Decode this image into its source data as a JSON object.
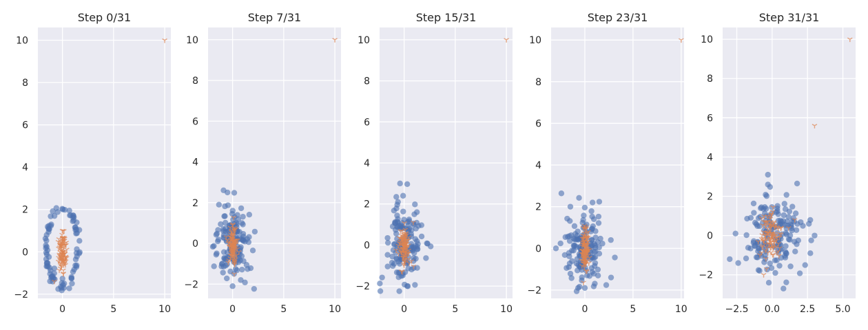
{
  "colors": {
    "axes_bg": "#eaeaf2",
    "grid": "#ffffff",
    "blue": "#4c72b0",
    "orange": "#dd8452",
    "text": "#262626"
  },
  "chart_data": [
    {
      "type": "scatter",
      "title": "Step 0/31",
      "xlim": [
        -2.4,
        10.6
      ],
      "ylim": [
        -2.2,
        10.6
      ],
      "xticks": [
        0,
        5,
        10
      ],
      "xtick_labels": [
        "0",
        "5",
        "10"
      ],
      "yticks": [
        -2,
        0,
        2,
        4,
        6,
        8,
        10
      ],
      "ytick_labels": [
        "−2",
        "0",
        "2",
        "4",
        "6",
        "8",
        "10"
      ],
      "series": [
        {
          "name": "blue points",
          "marker": "circle",
          "color": "#4c72b0",
          "shape": "ring",
          "cx": 0.0,
          "cy": 0.2,
          "rx": 1.55,
          "ry": 1.85,
          "n": 90,
          "seed": 11,
          "jitter": 0.07
        },
        {
          "name": "orange points",
          "marker": "tri_down",
          "color": "#dd8452",
          "shape": "gauss",
          "cx": 0.0,
          "cy": 0.0,
          "sx": 0.18,
          "sy": 0.42,
          "n": 100,
          "seed": 12,
          "extra": [
            [
              10,
              10
            ],
            [
              -0.8,
              -1.4
            ]
          ]
        }
      ]
    },
    {
      "type": "scatter",
      "title": "Step 7/31",
      "xlim": [
        -2.4,
        10.6
      ],
      "ylim": [
        -2.7,
        10.6
      ],
      "xticks": [
        0,
        5,
        10
      ],
      "xtick_labels": [
        "0",
        "5",
        "10"
      ],
      "yticks": [
        -2,
        0,
        2,
        4,
        6,
        8,
        10
      ],
      "ytick_labels": [
        "−2",
        "0",
        "2",
        "4",
        "6",
        "8",
        "10"
      ],
      "series": [
        {
          "name": "blue points",
          "marker": "circle",
          "color": "#4c72b0",
          "shape": "gauss",
          "cx": 0.0,
          "cy": 0.1,
          "sx": 0.85,
          "sy": 0.95,
          "n": 150,
          "seed": 21,
          "extra": [
            [
              -0.5,
              2.5
            ],
            [
              0.0,
              -2.1
            ],
            [
              0.8,
              -1.8
            ]
          ]
        },
        {
          "name": "orange points",
          "marker": "tri_down",
          "color": "#dd8452",
          "shape": "gauss",
          "cx": 0.0,
          "cy": 0.0,
          "sx": 0.2,
          "sy": 0.45,
          "n": 100,
          "seed": 22,
          "extra": [
            [
              10,
              10
            ]
          ]
        }
      ]
    },
    {
      "type": "scatter",
      "title": "Step 15/31",
      "xlim": [
        -2.4,
        10.6
      ],
      "ylim": [
        -2.6,
        10.6
      ],
      "xticks": [
        0,
        5,
        10
      ],
      "xtick_labels": [
        "0",
        "5",
        "10"
      ],
      "yticks": [
        -2,
        0,
        2,
        4,
        6,
        8,
        10
      ],
      "ytick_labels": [
        "−2",
        "0",
        "2",
        "4",
        "6",
        "8",
        "10"
      ],
      "series": [
        {
          "name": "blue points",
          "marker": "circle",
          "color": "#4c72b0",
          "shape": "gauss",
          "cx": 0.0,
          "cy": 0.0,
          "sx": 0.9,
          "sy": 0.95,
          "n": 150,
          "seed": 31,
          "extra": [
            [
              -0.4,
              3.0
            ],
            [
              -0.1,
              2.4
            ],
            [
              -0.6,
              2.1
            ],
            [
              0.3,
              -2.0
            ]
          ]
        },
        {
          "name": "orange points",
          "marker": "tri_down",
          "color": "#dd8452",
          "shape": "gauss",
          "cx": 0.0,
          "cy": 0.0,
          "sx": 0.25,
          "sy": 0.45,
          "n": 100,
          "seed": 32,
          "extra": [
            [
              10,
              10
            ],
            [
              0.9,
              1.1
            ]
          ]
        }
      ]
    },
    {
      "type": "scatter",
      "title": "Step 23/31",
      "xlim": [
        -3.5,
        10.3
      ],
      "ylim": [
        -2.4,
        10.6
      ],
      "xticks": [
        0,
        5,
        10
      ],
      "xtick_labels": [
        "0",
        "5",
        "10"
      ],
      "yticks": [
        -2,
        0,
        2,
        4,
        6,
        8,
        10
      ],
      "ytick_labels": [
        "−2",
        "0",
        "2",
        "4",
        "6",
        "8",
        "10"
      ],
      "series": [
        {
          "name": "blue points",
          "marker": "circle",
          "color": "#4c72b0",
          "shape": "gauss",
          "cx": 0.0,
          "cy": 0.0,
          "sx": 0.95,
          "sy": 0.95,
          "n": 150,
          "seed": 41,
          "extra": [
            [
              -3.0,
              0.0
            ],
            [
              2.7,
              0.4
            ],
            [
              -1.5,
              2.0
            ],
            [
              0.8,
              2.2
            ],
            [
              -0.7,
              -1.9
            ],
            [
              0.0,
              -1.9
            ]
          ]
        },
        {
          "name": "orange points",
          "marker": "tri_down",
          "color": "#dd8452",
          "shape": "gauss",
          "cx": 0.0,
          "cy": 0.0,
          "sx": 0.2,
          "sy": 0.5,
          "n": 100,
          "seed": 42,
          "extra": [
            [
              10,
              10
            ]
          ]
        }
      ]
    },
    {
      "type": "scatter",
      "title": "Step 31/31",
      "xlim": [
        -3.5,
        5.9
      ],
      "ylim": [
        -3.2,
        10.6
      ],
      "xticks": [
        -2.5,
        0,
        2.5,
        5
      ],
      "xtick_labels": [
        "−2.5",
        "0.0",
        "2.5",
        "5.0"
      ],
      "yticks": [
        -2,
        0,
        2,
        4,
        6,
        8,
        10
      ],
      "ytick_labels": [
        "−2",
        "0",
        "2",
        "4",
        "6",
        "8",
        "10"
      ],
      "series": [
        {
          "name": "blue points",
          "marker": "circle",
          "color": "#4c72b0",
          "shape": "gauss",
          "cx": 0.0,
          "cy": 0.0,
          "sx": 0.95,
          "sy": 1.0,
          "n": 160,
          "seed": 51,
          "extra": [
            [
              -3.0,
              -1.2
            ],
            [
              -2.4,
              -1.4
            ],
            [
              3.0,
              0.0
            ],
            [
              2.6,
              0.6
            ],
            [
              2.7,
              -0.9
            ],
            [
              -0.3,
              3.1
            ],
            [
              0.8,
              -2.7
            ],
            [
              -0.3,
              2.6
            ]
          ]
        },
        {
          "name": "orange points",
          "marker": "tri_down",
          "color": "#dd8452",
          "shape": "gauss",
          "cx": 0.0,
          "cy": 0.0,
          "sx": 0.35,
          "sy": 0.6,
          "n": 100,
          "seed": 52,
          "extra": [
            [
              5.5,
              10
            ],
            [
              3.0,
              5.6
            ],
            [
              1.6,
              0.8
            ],
            [
              -0.6,
              -2.0
            ],
            [
              -0.4,
              -1.7
            ]
          ]
        }
      ]
    }
  ]
}
